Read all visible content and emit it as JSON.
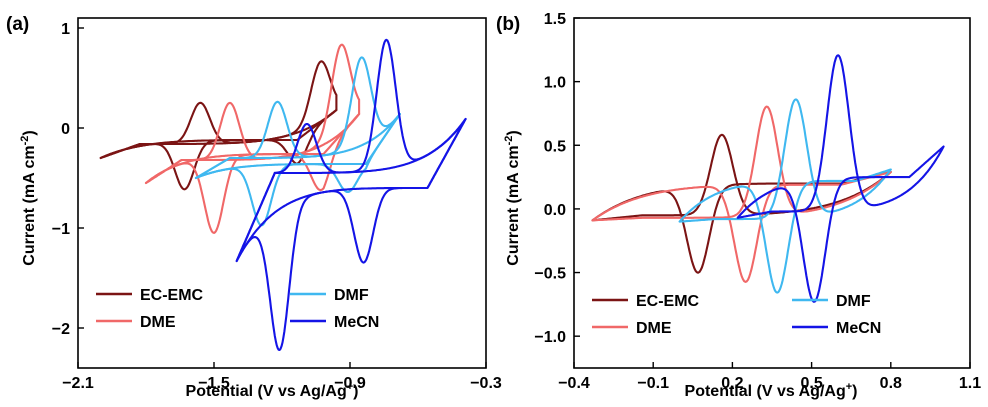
{
  "chart_data": [
    {
      "panel_label": "(a)",
      "type": "line",
      "xlabel_main": "Potential (V vs Ag/Ag",
      "xlabel_sup": "+",
      "xlabel_end": ")",
      "ylabel_main": "Current (mA cm",
      "ylabel_sup": "-2",
      "ylabel_end": ")",
      "xlim": [
        -2.1,
        -0.3
      ],
      "ylim": [
        -2.4,
        1.1
      ],
      "xticks": [
        -2.1,
        -1.5,
        -0.9,
        -0.3
      ],
      "xtick_labels": [
        "−2.1",
        "−1.5",
        "−0.9",
        "−0.3"
      ],
      "yticks": [
        -2,
        -1,
        0,
        1
      ],
      "ytick_labels": [
        "−2",
        "−1",
        "0",
        "1"
      ],
      "legend_location": "bottom",
      "series": [
        {
          "name": "EC-EMC",
          "color": "#7b1414",
          "sweep": {
            "xmin": -2.0,
            "xmax": -0.96,
            "anodic_E": -1.03,
            "anodic_I": 0.44,
            "cathodic_E": -1.13,
            "cathodic_I": -0.36,
            "start_I": -0.3,
            "end_I": 0.18,
            "cathodic_base_I": -0.12,
            "anodic_base_I": -0.16
          }
        },
        {
          "name": "EC-EMC",
          "color": "#7b1414",
          "sweep": {
            "xmin": -2.0,
            "xmax": -0.96,
            "anodic_E": -1.56,
            "anodic_I": 0.25,
            "cathodic_E": -1.63,
            "cathodic_I": -0.6,
            "start_I": -0.3,
            "end_I": 0.18,
            "cathodic_base_I": -0.12,
            "anodic_base_I": -0.16
          }
        },
        {
          "name": "DME",
          "color": "#f06868",
          "sweep": {
            "xmin": -1.8,
            "xmax": -0.86,
            "anodic_E": -0.94,
            "anodic_I": 0.56,
            "cathodic_E": -1.03,
            "cathodic_I": -0.62,
            "start_I": -0.55,
            "end_I": 0.14,
            "cathodic_base_I": -0.26,
            "anodic_base_I": -0.32
          }
        },
        {
          "name": "DME",
          "color": "#f06868",
          "sweep": {
            "xmin": -1.8,
            "xmax": -0.86,
            "anodic_E": -1.43,
            "anodic_I": 0.25,
            "cathodic_E": -1.5,
            "cathodic_I": -1.02,
            "start_I": -0.55,
            "end_I": 0.14,
            "cathodic_base_I": -0.26,
            "anodic_base_I": -0.32
          }
        },
        {
          "name": "DMF",
          "color": "#3fb8f0",
          "sweep": {
            "xmin": -1.58,
            "xmax": -0.68,
            "anodic_E": -0.85,
            "anodic_I": 0.58,
            "cathodic_E": -0.91,
            "cathodic_I": -0.64,
            "start_I": -0.5,
            "end_I": 0.14,
            "cathodic_base_I": -0.36,
            "anodic_base_I": -0.3
          }
        },
        {
          "name": "DMF",
          "color": "#3fb8f0",
          "sweep": {
            "xmin": -1.58,
            "xmax": -0.68,
            "anodic_E": -1.22,
            "anodic_I": 0.26,
            "cathodic_E": -1.29,
            "cathodic_I": -0.96,
            "start_I": -0.5,
            "end_I": 0.14,
            "cathodic_base_I": -0.36,
            "anodic_base_I": -0.3
          }
        },
        {
          "name": "MeCN",
          "color": "#1414e6",
          "sweep": {
            "xmin": -1.4,
            "xmax": -0.39,
            "anodic_E": -0.74,
            "anodic_I": 0.84,
            "cathodic_E": -0.84,
            "cathodic_I": -1.34,
            "start_I": -1.33,
            "end_I": 0.09,
            "cathodic_base_I": -0.6,
            "anodic_base_I": -0.45
          }
        },
        {
          "name": "MeCN",
          "color": "#1414e6",
          "sweep": {
            "xmin": -1.4,
            "xmax": -0.39,
            "anodic_E": -1.09,
            "anodic_I": 0.04,
            "cathodic_E": -1.21,
            "cathodic_I": -2.01,
            "start_I": -1.33,
            "end_I": 0.09,
            "cathodic_base_I": -0.6,
            "anodic_base_I": -0.45
          }
        }
      ],
      "legend": [
        {
          "name": "EC-EMC",
          "color": "#7b1414"
        },
        {
          "name": "DME",
          "color": "#f06868"
        },
        {
          "name": "DMF",
          "color": "#3fb8f0"
        },
        {
          "name": "MeCN",
          "color": "#1414e6"
        }
      ]
    },
    {
      "panel_label": "(b)",
      "type": "line",
      "xlabel_main": "Potential (V vs Ag/Ag",
      "xlabel_sup": "+",
      "xlabel_end": ")",
      "ylabel_main": "Current (mA cm",
      "ylabel_sup": "-2",
      "ylabel_end": ")",
      "xlim": [
        -0.4,
        1.1
      ],
      "ylim": [
        -1.25,
        1.5
      ],
      "xticks": [
        -0.4,
        -0.1,
        0.2,
        0.5,
        0.8,
        1.1
      ],
      "xtick_labels": [
        "−0.4",
        "−0.1",
        "0.2",
        "0.5",
        "0.8",
        "1.1"
      ],
      "yticks": [
        -1.0,
        -0.5,
        0.0,
        0.5,
        1.0,
        1.5
      ],
      "ytick_labels": [
        "−1.0",
        "−0.5",
        "0.0",
        "0.5",
        "1.0",
        "1.5"
      ],
      "legend_location": "bottom",
      "series": [
        {
          "name": "EC-EMC",
          "color": "#7b1414",
          "sweep": {
            "xmin": -0.33,
            "xmax": 0.8,
            "anodic_E": 0.16,
            "anodic_I": 0.58,
            "cathodic_E": 0.07,
            "cathodic_I": -0.48,
            "start_I": -0.09,
            "end_I": 0.29,
            "cathodic_base_I": 0.2,
            "anodic_base_I": -0.05
          }
        },
        {
          "name": "DME",
          "color": "#f06868",
          "sweep": {
            "xmin": -0.33,
            "xmax": 0.8,
            "anodic_E": 0.33,
            "anodic_I": 0.79,
            "cathodic_E": 0.25,
            "cathodic_I": -0.57,
            "start_I": -0.09,
            "end_I": 0.29,
            "cathodic_base_I": 0.19,
            "anodic_base_I": -0.07
          }
        },
        {
          "name": "DMF",
          "color": "#3fb8f0",
          "sweep": {
            "xmin": 0.0,
            "xmax": 0.8,
            "anodic_E": 0.44,
            "anodic_I": 0.85,
            "cathodic_E": 0.37,
            "cathodic_I": -0.65,
            "start_I": -0.1,
            "end_I": 0.31,
            "cathodic_base_I": 0.22,
            "anodic_base_I": -0.08
          }
        },
        {
          "name": "MeCN",
          "color": "#1414e6",
          "sweep": {
            "xmin": 0.22,
            "xmax": 1.0,
            "anodic_E": 0.6,
            "anodic_I": 1.2,
            "cathodic_E": 0.51,
            "cathodic_I": -0.71,
            "start_I": -0.07,
            "end_I": 0.49,
            "cathodic_base_I": 0.25,
            "anodic_base_I": -0.02
          }
        }
      ],
      "legend": [
        {
          "name": "EC-EMC",
          "color": "#7b1414"
        },
        {
          "name": "DME",
          "color": "#f06868"
        },
        {
          "name": "DMF",
          "color": "#3fb8f0"
        },
        {
          "name": "MeCN",
          "color": "#1414e6"
        }
      ]
    }
  ]
}
